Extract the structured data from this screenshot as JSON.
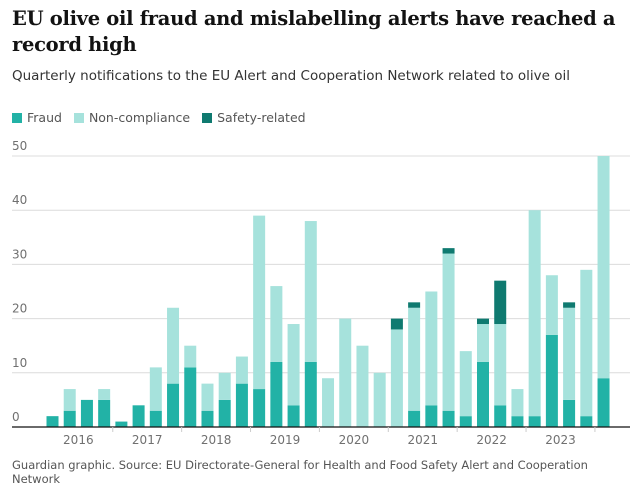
{
  "chart_data": {
    "type": "bar",
    "stacked": true,
    "title": "EU olive oil fraud and mislabelling alerts have reached a record high",
    "subtitle": "Quarterly notifications to the EU Alert and Cooperation Network related to olive oil",
    "source": "Guardian graphic. Source: EU Directorate-General for Health and Food Safety Alert and Cooperation Network",
    "xlabel": "",
    "ylabel": "",
    "ylim": [
      0,
      50
    ],
    "yticks": [
      "0",
      "10",
      "20",
      "30",
      "40",
      "50"
    ],
    "xtick_labels": [
      "2016",
      "2017",
      "2018",
      "2019",
      "2020",
      "2021",
      "2022",
      "2023"
    ],
    "legend_position": "top-left",
    "categories": [
      "2016 Q1",
      "2016 Q2",
      "2016 Q3",
      "2016 Q4",
      "2017 Q1",
      "2017 Q2",
      "2017 Q3",
      "2017 Q4",
      "2018 Q1",
      "2018 Q2",
      "2018 Q3",
      "2018 Q4",
      "2019 Q1",
      "2019 Q2",
      "2019 Q3",
      "2019 Q4",
      "2020 Q1",
      "2020 Q2",
      "2020 Q3",
      "2020 Q4",
      "2021 Q1",
      "2021 Q2",
      "2021 Q3",
      "2021 Q4",
      "2022 Q1",
      "2022 Q2",
      "2022 Q3",
      "2022 Q4",
      "2023 Q1",
      "2023 Q2",
      "2023 Q3",
      "2023 Q4",
      "2024 Q1"
    ],
    "series": [
      {
        "name": "Fraud",
        "color": "#22b2a6",
        "values": [
          2,
          3,
          5,
          5,
          1,
          4,
          3,
          8,
          11,
          3,
          5,
          8,
          7,
          12,
          4,
          12,
          0,
          0,
          0,
          0,
          0,
          3,
          4,
          3,
          2,
          12,
          4,
          2,
          2,
          17,
          5,
          2,
          9
        ]
      },
      {
        "name": "Non-compliance",
        "color": "#a6e2dc",
        "values": [
          0,
          4,
          0,
          2,
          0,
          0,
          8,
          14,
          4,
          5,
          5,
          5,
          32,
          14,
          15,
          26,
          9,
          20,
          15,
          10,
          18,
          19,
          21,
          29,
          12,
          7,
          15,
          5,
          38,
          11,
          17,
          27,
          41
        ]
      },
      {
        "name": "Safety-related",
        "color": "#0f7a70",
        "values": [
          0,
          0,
          0,
          0,
          0,
          0,
          0,
          0,
          0,
          0,
          0,
          0,
          0,
          0,
          0,
          0,
          0,
          0,
          0,
          0,
          2,
          1,
          0,
          1,
          0,
          1,
          8,
          0,
          0,
          0,
          1,
          0,
          0
        ]
      }
    ]
  }
}
